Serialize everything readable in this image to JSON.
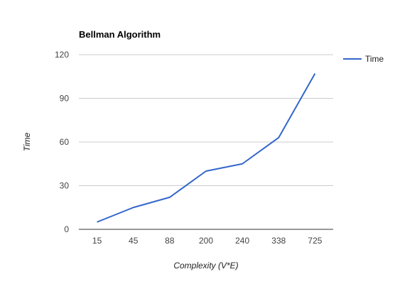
{
  "chart_data": {
    "type": "line",
    "title": "Bellman Algorithm",
    "xlabel": "Complexity (V*E)",
    "ylabel": "Time",
    "categories": [
      "15",
      "45",
      "88",
      "200",
      "240",
      "338",
      "725"
    ],
    "series": [
      {
        "name": "Time",
        "values": [
          5,
          15,
          22,
          40,
          45,
          63,
          107
        ],
        "color": "#3366cc"
      }
    ],
    "ylim": [
      0,
      120
    ],
    "yticks": [
      0,
      30,
      60,
      90,
      120
    ],
    "grid": true,
    "legend_position": "right"
  }
}
